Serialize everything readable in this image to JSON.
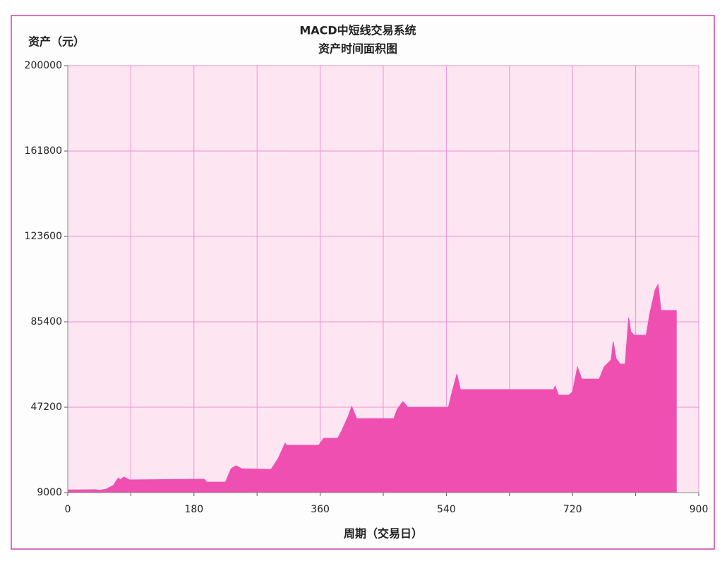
{
  "chart_data": {
    "type": "area",
    "title": "MACD中短线交易系统",
    "subtitle": "资产时间面积图",
    "y_label": "资产（元）",
    "x_label": "周期（交易日）",
    "color": "#ee4fb0",
    "grid": true,
    "xlim": [
      0,
      900
    ],
    "xticks": [
      0,
      180,
      360,
      540,
      720,
      900
    ],
    "x_minor_ticks": [
      90,
      270,
      450,
      630,
      810
    ],
    "ylim": [
      9000,
      200000
    ],
    "yticks": [
      9000,
      47200,
      85400,
      123600,
      161800,
      200000
    ],
    "x": [
      0,
      40,
      45,
      55,
      65,
      72,
      75,
      80,
      88,
      195,
      198,
      225,
      228,
      233,
      240,
      248,
      290,
      300,
      310,
      312,
      358,
      365,
      385,
      390,
      400,
      405,
      412,
      465,
      470,
      478,
      485,
      543,
      547,
      555,
      560,
      693,
      695,
      700,
      715,
      720,
      727,
      733,
      758,
      765,
      775,
      778,
      782,
      788,
      795,
      800,
      803,
      808,
      825,
      830,
      838,
      842,
      846,
      868
    ],
    "values": [
      10200,
      10300,
      10000,
      10600,
      12200,
      15600,
      14700,
      16000,
      14700,
      15000,
      13700,
      13700,
      16000,
      19700,
      21000,
      19700,
      19400,
      24200,
      31100,
      30200,
      30200,
      33300,
      33300,
      36200,
      43100,
      47500,
      42100,
      42100,
      46300,
      49700,
      47200,
      47200,
      52600,
      62000,
      55100,
      55100,
      56700,
      52600,
      52600,
      54200,
      65200,
      59800,
      59800,
      65200,
      68400,
      76600,
      69000,
      66500,
      66500,
      87300,
      81000,
      79400,
      79400,
      88900,
      99900,
      102100,
      90500,
      90500
    ]
  }
}
